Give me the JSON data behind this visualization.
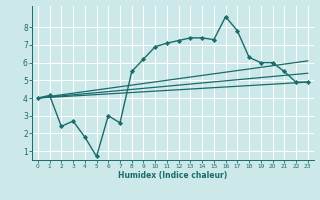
{
  "xlabel": "Humidex (Indice chaleur)",
  "ylabel": "",
  "xlim": [
    -0.5,
    23.5
  ],
  "ylim": [
    0.5,
    9.2
  ],
  "xticks": [
    0,
    1,
    2,
    3,
    4,
    5,
    6,
    7,
    8,
    9,
    10,
    11,
    12,
    13,
    14,
    15,
    16,
    17,
    18,
    19,
    20,
    21,
    22,
    23
  ],
  "yticks": [
    1,
    2,
    3,
    4,
    5,
    6,
    7,
    8
  ],
  "bg_color": "#cce8e8",
  "grid_color": "#ffffff",
  "line_color": "#1a6b6b",
  "lines": [
    {
      "x": [
        0,
        1,
        2,
        3,
        4,
        5,
        6,
        7,
        8,
        9,
        10,
        11,
        12,
        13,
        14,
        15,
        16,
        17,
        18,
        19,
        20,
        21,
        22,
        23
      ],
      "y": [
        4.0,
        4.15,
        2.4,
        2.7,
        1.8,
        0.7,
        3.0,
        2.6,
        5.5,
        6.2,
        6.9,
        7.1,
        7.25,
        7.4,
        7.4,
        7.3,
        8.6,
        7.8,
        6.3,
        6.0,
        6.0,
        5.5,
        4.9,
        4.9
      ],
      "marker": "D",
      "markersize": 2.2,
      "linewidth": 1.0
    },
    {
      "x": [
        0,
        23
      ],
      "y": [
        4.0,
        4.9
      ],
      "marker": null,
      "linewidth": 0.9
    },
    {
      "x": [
        0,
        23
      ],
      "y": [
        4.0,
        6.1
      ],
      "marker": null,
      "linewidth": 0.9
    },
    {
      "x": [
        0,
        23
      ],
      "y": [
        4.0,
        5.4
      ],
      "marker": null,
      "linewidth": 0.9
    }
  ]
}
